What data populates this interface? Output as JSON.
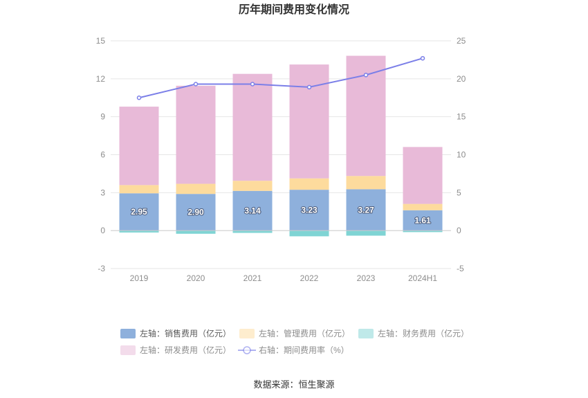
{
  "chart_data": {
    "type": "bar",
    "title": "历年期间费用变化情况",
    "source": "数据来源：恒生聚源",
    "categories": [
      "2019",
      "2020",
      "2021",
      "2022",
      "2023",
      "2024H1"
    ],
    "left_axis": {
      "ylim": [
        -3,
        15
      ],
      "ticks": [
        "-3",
        "0",
        "3",
        "6",
        "9",
        "12",
        "15"
      ]
    },
    "right_axis": {
      "ylim": [
        -5,
        25
      ],
      "ticks": [
        "-5",
        "0",
        "5",
        "10",
        "15",
        "20",
        "25"
      ]
    },
    "grid": true,
    "legend_position": "bottom",
    "series": [
      {
        "name": "左轴：销售费用（亿元）",
        "kind": "bar",
        "axis": "left",
        "color": "#8eb0dc",
        "values": [
          2.95,
          2.9,
          3.14,
          3.23,
          3.27,
          1.61
        ],
        "labels": [
          "2.95",
          "2.90",
          "3.14",
          "3.23",
          "3.27",
          "1.61"
        ]
      },
      {
        "name": "左轴：管理费用（亿元）",
        "kind": "bar",
        "axis": "left",
        "color": "#fddb9d",
        "values": [
          0.65,
          0.8,
          0.8,
          0.9,
          1.05,
          0.5
        ]
      },
      {
        "name": "左轴：财务费用（亿元）",
        "kind": "bar",
        "axis": "left",
        "color": "#7fd4d4",
        "values": [
          -0.15,
          -0.25,
          -0.18,
          -0.45,
          -0.4,
          -0.12
        ]
      },
      {
        "name": "左轴：研发费用（亿元）",
        "kind": "bar",
        "axis": "left",
        "color": "#e8bad8",
        "values": [
          6.2,
          7.75,
          8.45,
          9.0,
          9.5,
          4.5
        ]
      },
      {
        "name": "右轴：期间费用率（%）",
        "kind": "line",
        "axis": "right",
        "color": "#7b7fe8",
        "values": [
          17.5,
          19.3,
          19.3,
          18.9,
          20.5,
          22.7
        ]
      }
    ]
  }
}
